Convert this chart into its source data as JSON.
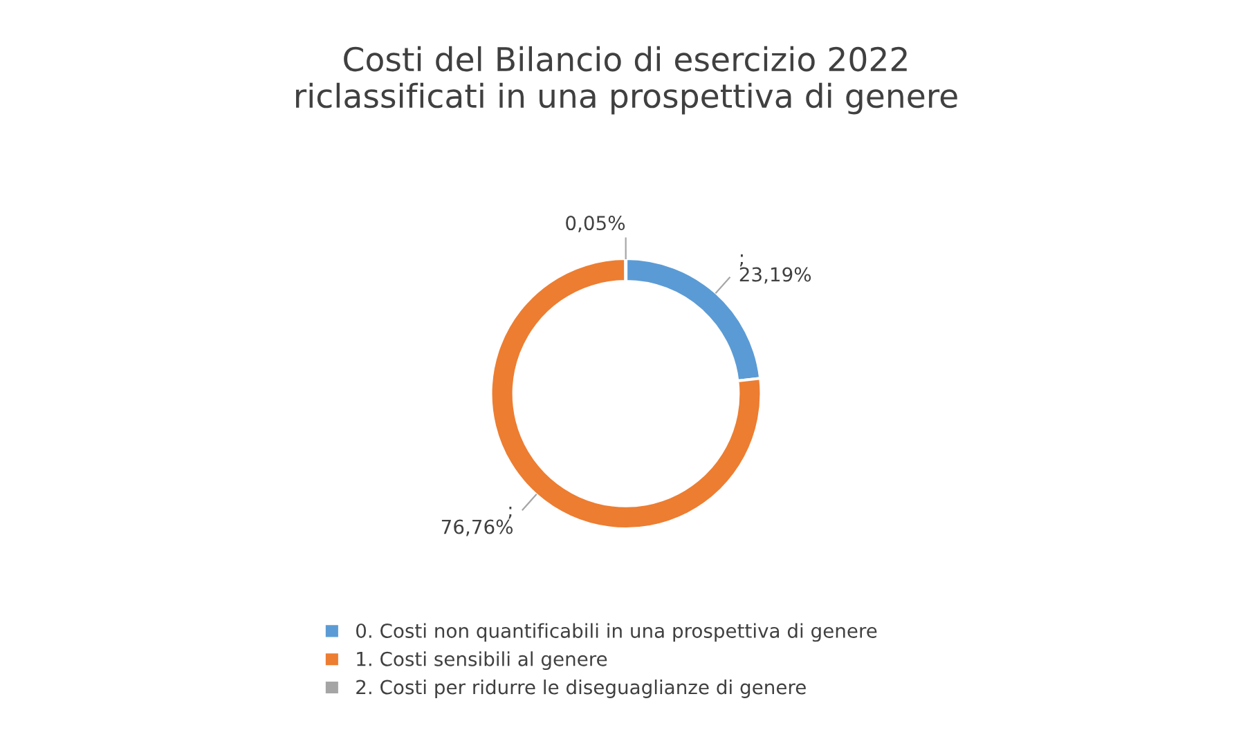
{
  "chart_data": {
    "type": "donut",
    "title": "Costi del Bilancio di esercizio 2022\nriclassificati in una prospettiva di genere",
    "categories": [
      "0. Costi non quantificabili in una prospettiva di genere",
      "1. Costi sensibili al genere",
      "2. Costi per ridurre le diseguaglianze di genere"
    ],
    "values": [
      23.19,
      76.76,
      0.05
    ],
    "colors": [
      "#5b9bd5",
      "#ed7d31",
      "#a5a5a5"
    ],
    "value_labels": [
      ";\n23,19%",
      ";\n76,76%",
      "0,05%"
    ],
    "legend": "bottom"
  }
}
